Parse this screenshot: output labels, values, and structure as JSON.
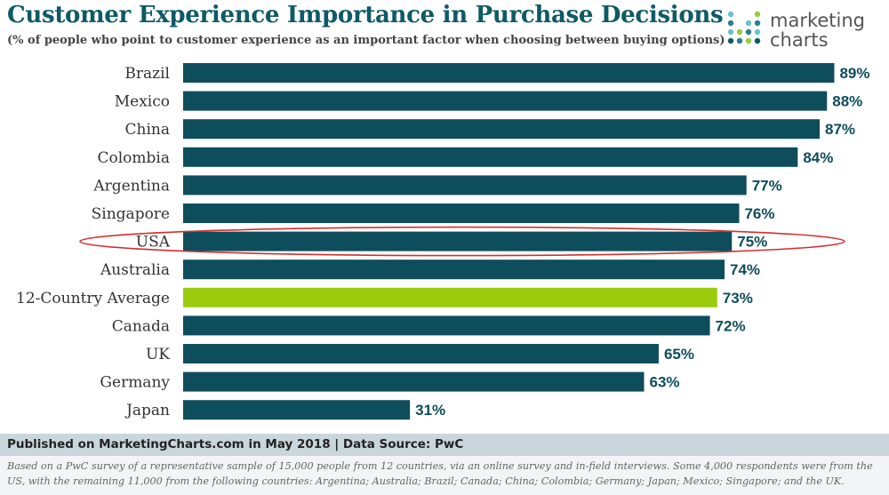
{
  "header": {
    "title": "Customer Experience Importance in Purchase Decisions",
    "subtitle": "(% of people who point to customer experience as an important factor when choosing between buying options)"
  },
  "logo": {
    "line1": "marketing",
    "line2": "charts",
    "colors": [
      "#2a7f8f",
      "#69c3c9",
      "#9ccb3b",
      "#0e5a66"
    ]
  },
  "chart_data": {
    "type": "bar",
    "orientation": "horizontal",
    "categories": [
      "Brazil",
      "Mexico",
      "China",
      "Colombia",
      "Argentina",
      "Singapore",
      "USA",
      "Australia",
      "12-Country Average",
      "Canada",
      "UK",
      "Germany",
      "Japan"
    ],
    "values": [
      89,
      88,
      87,
      84,
      77,
      76,
      75,
      74,
      73,
      72,
      65,
      63,
      31
    ],
    "labels": [
      "89%",
      "88%",
      "87%",
      "84%",
      "77%",
      "76%",
      "75%",
      "74%",
      "73%",
      "72%",
      "65%",
      "63%",
      "31%"
    ],
    "unit": "%",
    "xlim": [
      0,
      100
    ],
    "highlight": "12-Country Average",
    "circled": "USA",
    "colors": {
      "bar": "#0e4d5c",
      "highlight": "#9ccc0e",
      "circle": "#d23030",
      "label": "#0e4d5c"
    }
  },
  "footer": {
    "published": "Published on MarketingCharts.com in May 2018 | Data Source: PwC",
    "note": "Based on a PwC survey of a representative sample of 15,000 people from 12 countries, via an online survey and in-field interviews. Some 4,000 respondents were from the US, with the remaining 11,000 from the following countries: Argentina; Australia; Brazil; Canada; China; Colombia; Germany; Japan; Mexico; Singapore; and the UK."
  }
}
